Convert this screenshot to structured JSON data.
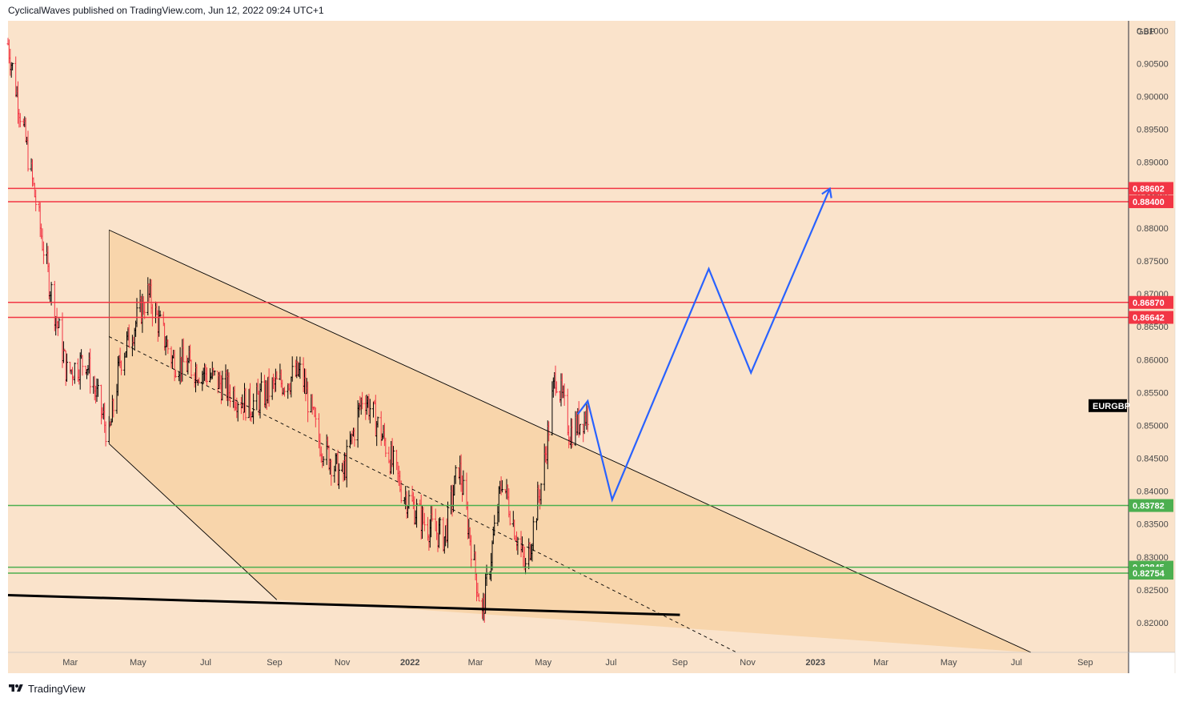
{
  "header": {
    "text": "CyclicalWaves published on TradingView.com, Jun 12, 2022 09:24 UTC+1"
  },
  "footer": {
    "brand": "TradingView"
  },
  "colors": {
    "background": "#fae3cb",
    "channel_fill": "#f8d5ab",
    "resistance": "#f23645",
    "support": "#4caf50",
    "projection": "#2962ff",
    "trendline": "#000000",
    "candle_up": "#000000",
    "candle_down": "#f23645"
  },
  "chart_data": {
    "type": "line",
    "symbol": "EURGBP",
    "currency": "GBP",
    "ylim": [
      0.8155,
      0.9115
    ],
    "y_ticks": [
      "0.91000",
      "0.90500",
      "0.90000",
      "0.89500",
      "0.89000",
      "0.88500",
      "0.88000",
      "0.87500",
      "0.87000",
      "0.86500",
      "0.86000",
      "0.85500",
      "0.85000",
      "0.84500",
      "0.84000",
      "0.83500",
      "0.83000",
      "0.82500",
      "0.82000"
    ],
    "x_ticks": [
      "Mar",
      "May",
      "Jul",
      "Sep",
      "Nov",
      "2022",
      "Mar",
      "May",
      "Jul",
      "Sep",
      "Nov",
      "2023",
      "Mar",
      "May",
      "Jul",
      "Sep"
    ],
    "x_range": [
      "2021-01-04",
      "2023-10-10"
    ],
    "price_path": [
      [
        "2021-01-04",
        0.908
      ],
      [
        "2021-01-20",
        0.893
      ],
      [
        "2021-02-10",
        0.872
      ],
      [
        "2021-02-26",
        0.858
      ],
      [
        "2021-03-15",
        0.86
      ],
      [
        "2021-04-05",
        0.848
      ],
      [
        "2021-04-15",
        0.86
      ],
      [
        "2021-05-10",
        0.87
      ],
      [
        "2021-06-01",
        0.86
      ],
      [
        "2021-07-01",
        0.858
      ],
      [
        "2021-08-10",
        0.853
      ],
      [
        "2021-09-01",
        0.856
      ],
      [
        "2021-09-25",
        0.858
      ],
      [
        "2021-10-10",
        0.848
      ],
      [
        "2021-11-01",
        0.842
      ],
      [
        "2021-11-20",
        0.855
      ],
      [
        "2021-12-08",
        0.848
      ],
      [
        "2021-12-25",
        0.84
      ],
      [
        "2022-01-15",
        0.835
      ],
      [
        "2022-02-01",
        0.833
      ],
      [
        "2022-02-14",
        0.844
      ],
      [
        "2022-03-07",
        0.821
      ],
      [
        "2022-03-25",
        0.842
      ],
      [
        "2022-04-15",
        0.828
      ],
      [
        "2022-05-01",
        0.843
      ],
      [
        "2022-05-12",
        0.858
      ],
      [
        "2022-05-25",
        0.849
      ],
      [
        "2022-06-10",
        0.852
      ]
    ],
    "horizontal_levels": [
      {
        "label": "0.88602",
        "value": 0.88602,
        "kind": "resistance"
      },
      {
        "label": "0.88400",
        "value": 0.884,
        "kind": "resistance"
      },
      {
        "label": "0.86870",
        "value": 0.8687,
        "kind": "resistance"
      },
      {
        "label": "0.86642",
        "value": 0.86642,
        "kind": "resistance"
      },
      {
        "label": "0.83782",
        "value": 0.83782,
        "kind": "support"
      },
      {
        "label": "0.82845",
        "value": 0.82845,
        "kind": "support"
      },
      {
        "label": "0.82754",
        "value": 0.82754,
        "kind": "support"
      }
    ],
    "channel": {
      "upper": [
        [
          "2021-04-05",
          0.8797
        ],
        [
          "2023-07-14",
          0.8155
        ]
      ],
      "lower": [
        [
          "2021-04-05",
          0.8472
        ],
        [
          "2021-09-03",
          0.8235
        ],
        [
          "2022-03-03",
          0.8206
        ]
      ],
      "mid": [
        [
          "2021-04-05",
          0.8635
        ],
        [
          "2022-10-22",
          0.8155
        ]
      ]
    },
    "long_trendline": [
      [
        "2021-01-04",
        0.8242
      ],
      [
        "2022-09-01",
        0.8212
      ]
    ],
    "projection": [
      [
        "2022-06-01",
        0.8517
      ],
      [
        "2022-06-10",
        0.8537
      ],
      [
        "2022-07-02",
        0.8387
      ],
      [
        "2022-09-27",
        0.8738
      ],
      [
        "2022-11-04",
        0.858
      ],
      [
        "2023-01-14",
        0.886
      ]
    ],
    "last_price_label": "EURGBP"
  }
}
